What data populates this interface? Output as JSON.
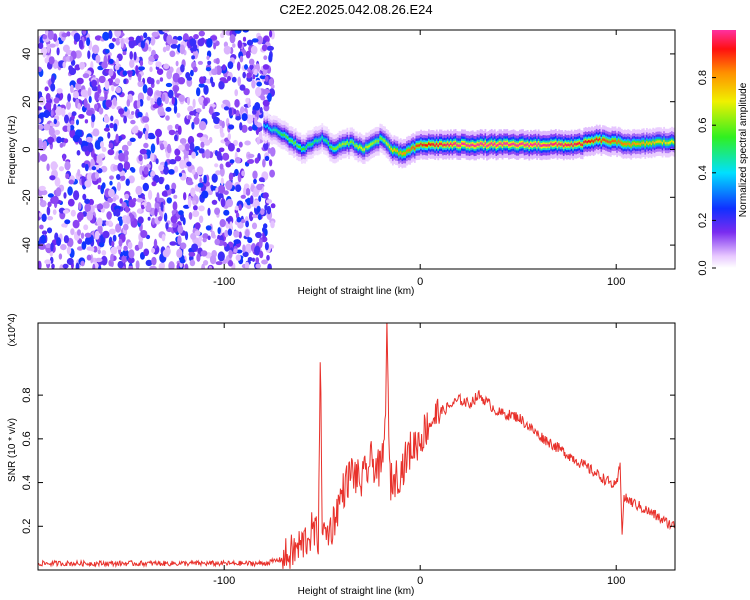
{
  "title": "C2E2.2025.042.08.26.E24",
  "colors": {
    "snr_line": "#e8312b",
    "axis": "#000000"
  },
  "chart_data": [
    {
      "type": "heatmap",
      "xlabel": "Height of straight line (km)",
      "ylabel": "Frequency (Hz)",
      "xlim": [
        -195,
        130
      ],
      "ylim": [
        -50,
        50
      ],
      "xticks": [
        -100,
        0,
        100
      ],
      "yticks": [
        -40,
        -20,
        0,
        20,
        40
      ],
      "xtick_labels": [
        "-100",
        "0",
        "100"
      ],
      "ytick_labels": [
        "-40",
        "-20",
        "0",
        "20",
        "40"
      ],
      "colorbar": {
        "label": "Normalized spectral amplitude",
        "range": [
          0,
          1
        ],
        "ticks": [
          0.0,
          0.2,
          0.4,
          0.6,
          0.8
        ],
        "tick_labels": [
          "0.0",
          "0.2",
          "0.4",
          "0.6",
          "0.8"
        ]
      },
      "noise_region_x": [
        -195,
        -75
      ],
      "ridge": {
        "x": [
          -80,
          -75,
          -70,
          -65,
          -60,
          -55,
          -50,
          -45,
          -40,
          -35,
          -30,
          -25,
          -20,
          -15,
          -10,
          -5,
          0,
          10,
          20,
          40,
          60,
          80,
          90,
          100,
          110,
          120,
          130
        ],
        "freq": [
          10,
          8,
          6,
          3,
          0,
          3,
          5,
          0,
          2,
          3,
          0,
          2,
          5,
          0,
          -2,
          0,
          2,
          2,
          2,
          2,
          2,
          2,
          4,
          3,
          2,
          3,
          3
        ],
        "peak_amplitude": [
          0.35,
          0.45,
          0.55,
          0.6,
          0.55,
          0.5,
          0.45,
          0.6,
          0.65,
          0.6,
          0.7,
          0.65,
          0.6,
          0.75,
          0.8,
          0.85,
          0.9,
          0.95,
          1.0,
          1.0,
          1.0,
          0.95,
          0.9,
          0.85,
          0.8,
          0.75,
          0.7
        ]
      }
    },
    {
      "type": "line",
      "xlabel": "Height of straight line (km)",
      "ylabel": "SNR (10 * v/v)",
      "yscale_label": "(x10^4)",
      "xlim": [
        -195,
        130
      ],
      "ylim": [
        0,
        1.13
      ],
      "xticks": [
        -100,
        0,
        100
      ],
      "yticks": [
        0.2,
        0.4,
        0.6,
        0.8
      ],
      "xtick_labels": [
        "-100",
        "0",
        "100"
      ],
      "ytick_labels": [
        "0.2",
        "0.4",
        "0.6",
        "0.8"
      ],
      "series": [
        {
          "x": [
            -195,
            -150,
            -100,
            -80,
            -70,
            -65,
            -60,
            -55,
            -52,
            -51,
            -50,
            -49,
            -45,
            -40,
            -35,
            -30,
            -25,
            -20,
            -18,
            -17,
            -16,
            -15,
            -10,
            -5,
            0,
            5,
            10,
            15,
            20,
            25,
            30,
            35,
            40,
            50,
            60,
            70,
            80,
            90,
            100,
            102,
            103,
            104,
            110,
            120,
            125,
            130
          ],
          "y": [
            0.03,
            0.03,
            0.03,
            0.03,
            0.05,
            0.08,
            0.12,
            0.18,
            0.15,
            0.96,
            0.25,
            0.15,
            0.2,
            0.35,
            0.45,
            0.4,
            0.5,
            0.45,
            0.62,
            1.15,
            0.55,
            0.4,
            0.45,
            0.55,
            0.6,
            0.68,
            0.72,
            0.75,
            0.78,
            0.76,
            0.8,
            0.76,
            0.72,
            0.7,
            0.62,
            0.56,
            0.5,
            0.44,
            0.38,
            0.48,
            0.18,
            0.33,
            0.3,
            0.25,
            0.22,
            0.2
          ]
        }
      ]
    }
  ]
}
